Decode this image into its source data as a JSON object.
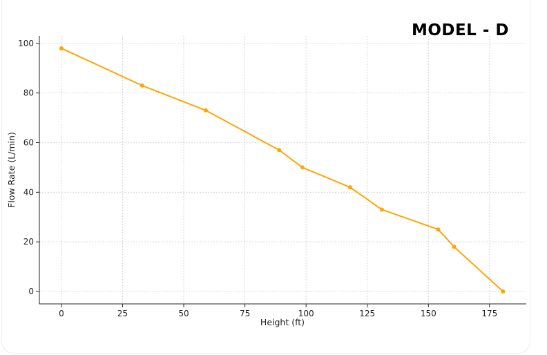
{
  "header": {
    "model_label": "MODEL - D"
  },
  "chart_data": {
    "type": "line",
    "title": "",
    "xlabel": "Height (ft)",
    "ylabel": "Flow Rate (L/min)",
    "xlim": [
      -9,
      190
    ],
    "ylim": [
      -5,
      103
    ],
    "xticks": [
      0,
      25,
      50,
      75,
      100,
      125,
      150,
      175
    ],
    "yticks": [
      0,
      20,
      40,
      60,
      80,
      100
    ],
    "grid": true,
    "legend": "none",
    "series": [
      {
        "color": "#FFA500",
        "x": [
          0,
          33,
          59,
          89,
          98.5,
          118,
          131,
          154,
          160.5,
          180.5
        ],
        "y": [
          98,
          83,
          73,
          57,
          50,
          42,
          33,
          25,
          18,
          0
        ]
      }
    ]
  }
}
